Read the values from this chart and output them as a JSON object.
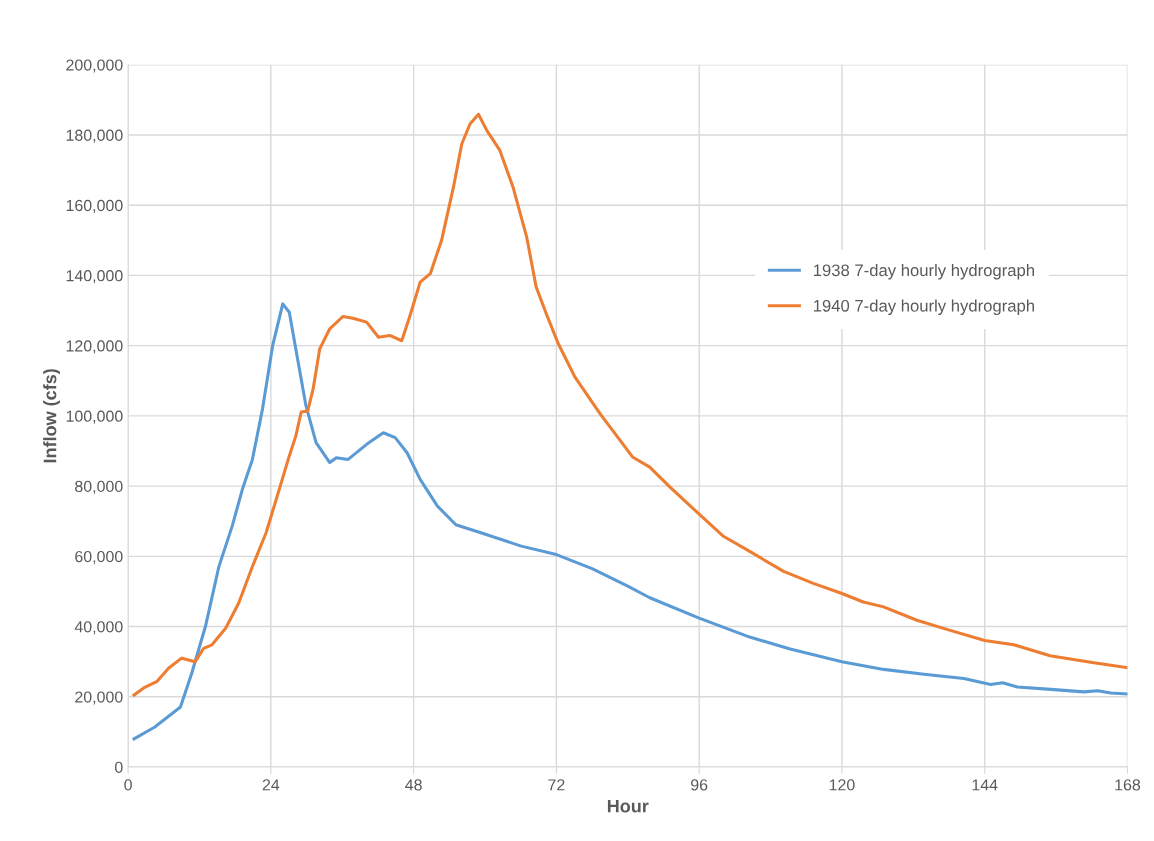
{
  "chart_data": {
    "type": "line",
    "xlabel": "Hour",
    "ylabel": "Inflow (cfs)",
    "xlim": [
      0,
      168
    ],
    "xticks": [
      0,
      24,
      48,
      72,
      96,
      120,
      144,
      168
    ],
    "ylim": [
      0,
      200000
    ],
    "yticks": [
      {
        "value": 0,
        "label": "0"
      },
      {
        "value": 20000,
        "label": "20,000"
      },
      {
        "value": 40000,
        "label": "40,000"
      },
      {
        "value": 60000,
        "label": "60,000"
      },
      {
        "value": 80000,
        "label": "80,000"
      },
      {
        "value": 100000,
        "label": "100,000"
      },
      {
        "value": 120000,
        "label": "120,000"
      },
      {
        "value": 140000,
        "label": "140,000"
      },
      {
        "value": 160000,
        "label": "160,000"
      },
      {
        "value": 180000,
        "label": "180,000"
      },
      {
        "value": 200000,
        "label": "200,000"
      }
    ],
    "grid": true,
    "legend": "right",
    "marker": "none",
    "line_style": "solid",
    "series": [
      {
        "name": "1938 7-day hourly hydrograph",
        "color": "#5b9bd5",
        "x": [
          1,
          4.5,
          8.8,
          10.7,
          13,
          15.25,
          17.5,
          19.2,
          20.9,
          22.6,
          24.3,
          26,
          27.1,
          28.2,
          29.9,
          31.6,
          33.9,
          35,
          37,
          40.1,
          42.9,
          44.9,
          46.9,
          49.1,
          52,
          55.1,
          59.3,
          66.1,
          72,
          78,
          84,
          87.7,
          96,
          104.5,
          111.3,
          120,
          127,
          133.8,
          140.5,
          145,
          147,
          149.5,
          155.1,
          160.7,
          163,
          165.2,
          168
        ],
        "values": [
          8000,
          11400,
          17100,
          26700,
          40000,
          57000,
          68600,
          79000,
          87600,
          102000,
          120000,
          131900,
          129500,
          119000,
          102900,
          92400,
          86700,
          88100,
          87600,
          91900,
          95200,
          93800,
          89500,
          81900,
          74300,
          69000,
          66700,
          62900,
          60500,
          56500,
          51500,
          48200,
          42400,
          37000,
          33600,
          30000,
          27800,
          26400,
          25200,
          23500,
          24000,
          22800,
          22100,
          21400,
          21700,
          21100,
          20800
        ]
      },
      {
        "name": "1940 7-day hourly hydrograph",
        "color": "#ed7d31",
        "x": [
          1,
          2.8,
          4.8,
          6.8,
          9,
          11.3,
          12.7,
          14.1,
          16.4,
          18.6,
          20.9,
          23.2,
          25.4,
          27.1,
          28.2,
          29.1,
          30.2,
          31.1,
          32.2,
          33.9,
          36.1,
          37.8,
          40.1,
          42.1,
          44,
          46,
          47.4,
          49.1,
          50.8,
          52.7,
          54.7,
          56.1,
          57.5,
          58.9,
          60.3,
          62.5,
          64.7,
          67,
          68.6,
          70.3,
          72.3,
          75.1,
          79.3,
          84.8,
          87.7,
          91.1,
          96,
          100,
          104.5,
          110.2,
          115.2,
          120,
          123.6,
          127,
          132.6,
          138.2,
          144,
          148.9,
          155,
          161.8,
          168
        ],
        "values": [
          20500,
          22700,
          24300,
          28100,
          31000,
          30000,
          33800,
          34800,
          39500,
          46700,
          57100,
          66700,
          79000,
          88600,
          94300,
          101100,
          101400,
          107600,
          119000,
          124800,
          128300,
          127800,
          126700,
          122400,
          122900,
          121400,
          128600,
          138100,
          140500,
          150000,
          165200,
          177500,
          183200,
          185900,
          181300,
          175600,
          165200,
          151000,
          136700,
          129100,
          120600,
          111100,
          100700,
          88300,
          85400,
          79700,
          72000,
          65800,
          61400,
          55700,
          52300,
          49400,
          47000,
          45600,
          41800,
          38900,
          36000,
          34800,
          31700,
          29800,
          28300
        ]
      }
    ]
  }
}
